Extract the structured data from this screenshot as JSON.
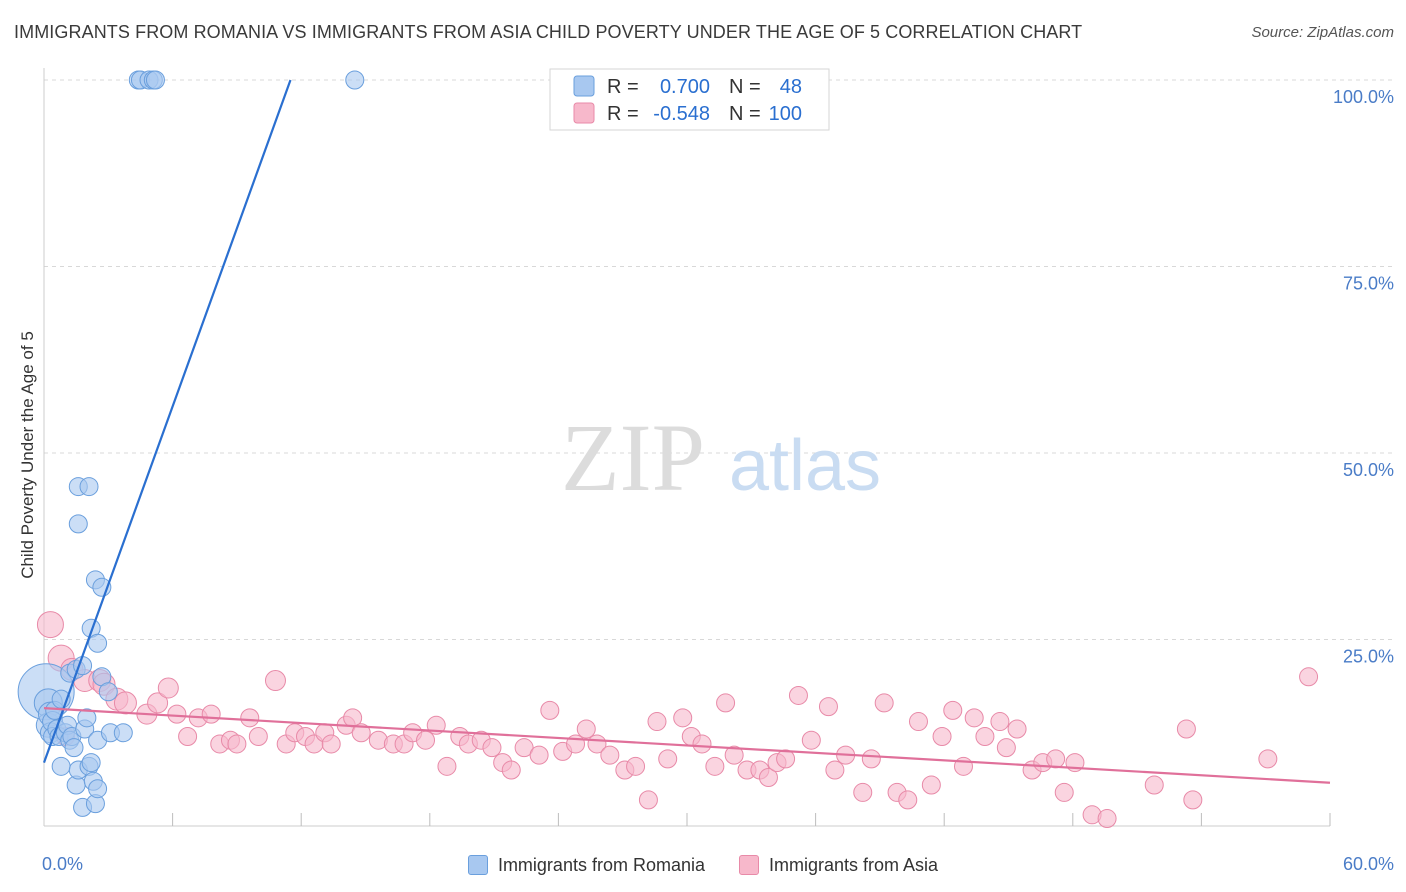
{
  "title": "IMMIGRANTS FROM ROMANIA VS IMMIGRANTS FROM ASIA CHILD POVERTY UNDER THE AGE OF 5 CORRELATION CHART",
  "source": "Source: ZipAtlas.com",
  "watermark": {
    "zip": "ZIP",
    "atlas": "atlas"
  },
  "legend_top": {
    "r_label": "R =",
    "n_label": "N =",
    "entries": [
      {
        "r": "0.700",
        "n": "48"
      },
      {
        "r": "-0.548",
        "n": "100"
      }
    ]
  },
  "colors": {
    "romania_fill": "#a8c8f0",
    "romania_stroke": "#6a9fdd",
    "romania_line": "#2a6fd0",
    "asia_fill": "#f7b8cb",
    "asia_stroke": "#e88aa8",
    "asia_line": "#e0709a",
    "tick_text": "#4a7cc7",
    "grid": "#d8d8d8"
  },
  "chart_data": {
    "type": "scatter",
    "title": "IMMIGRANTS FROM ROMANIA VS IMMIGRANTS FROM ASIA CHILD POVERTY UNDER THE AGE OF 5 CORRELATION CHART",
    "xlabel": "",
    "ylabel": "Child Poverty Under the Age of 5",
    "xlim": [
      0,
      60
    ],
    "ylim": [
      0,
      103
    ],
    "x_tick_labels": [
      {
        "value": 0,
        "label": "0.0%"
      },
      {
        "value": 60,
        "label": "60.0%"
      }
    ],
    "x_minor_ticks": [
      6,
      12,
      18,
      24,
      30,
      36,
      42,
      48,
      54,
      60
    ],
    "y_ticks": [
      {
        "value": 25,
        "label": "25.0%"
      },
      {
        "value": 50,
        "label": "50.0%"
      },
      {
        "value": 75,
        "label": "75.0%"
      },
      {
        "value": 100,
        "label": "100.0%"
      }
    ],
    "grid": true,
    "legend_position": "top-center",
    "series": [
      {
        "name": "Immigrants from Romania",
        "r": 0.7,
        "n": 48,
        "trend": {
          "x0": 0.0,
          "y0": 8.5,
          "x1": 11.5,
          "y1": 100
        },
        "points": [
          {
            "x": 0.1,
            "y": 18.0,
            "s": 28
          },
          {
            "x": 0.2,
            "y": 16.5,
            "s": 14
          },
          {
            "x": 0.2,
            "y": 13.5,
            "s": 12
          },
          {
            "x": 0.3,
            "y": 15.0,
            "s": 12
          },
          {
            "x": 0.3,
            "y": 12.5,
            "s": 10
          },
          {
            "x": 0.4,
            "y": 14.0,
            "s": 10
          },
          {
            "x": 0.4,
            "y": 12.0,
            "s": 9
          },
          {
            "x": 0.5,
            "y": 15.5,
            "s": 9
          },
          {
            "x": 0.6,
            "y": 13.0,
            "s": 9
          },
          {
            "x": 0.7,
            "y": 12.0,
            "s": 9
          },
          {
            "x": 0.8,
            "y": 17.0,
            "s": 9
          },
          {
            "x": 0.8,
            "y": 8.0,
            "s": 9
          },
          {
            "x": 1.0,
            "y": 12.5,
            "s": 9
          },
          {
            "x": 1.1,
            "y": 13.5,
            "s": 9
          },
          {
            "x": 1.2,
            "y": 20.5,
            "s": 9
          },
          {
            "x": 1.2,
            "y": 11.5,
            "s": 9
          },
          {
            "x": 1.3,
            "y": 12.0,
            "s": 9
          },
          {
            "x": 1.4,
            "y": 10.5,
            "s": 9
          },
          {
            "x": 1.5,
            "y": 21.0,
            "s": 9
          },
          {
            "x": 1.5,
            "y": 5.5,
            "s": 9
          },
          {
            "x": 1.6,
            "y": 7.5,
            "s": 9
          },
          {
            "x": 1.6,
            "y": 45.5,
            "s": 9
          },
          {
            "x": 1.6,
            "y": 40.5,
            "s": 9
          },
          {
            "x": 1.8,
            "y": 21.5,
            "s": 9
          },
          {
            "x": 1.8,
            "y": 2.5,
            "s": 9
          },
          {
            "x": 1.9,
            "y": 13.0,
            "s": 9
          },
          {
            "x": 2.0,
            "y": 14.5,
            "s": 9
          },
          {
            "x": 2.1,
            "y": 45.5,
            "s": 9
          },
          {
            "x": 2.1,
            "y": 8.0,
            "s": 9
          },
          {
            "x": 2.2,
            "y": 26.5,
            "s": 9
          },
          {
            "x": 2.2,
            "y": 8.5,
            "s": 9
          },
          {
            "x": 2.3,
            "y": 6.0,
            "s": 9
          },
          {
            "x": 2.4,
            "y": 3.0,
            "s": 9
          },
          {
            "x": 2.4,
            "y": 33.0,
            "s": 9
          },
          {
            "x": 2.5,
            "y": 24.5,
            "s": 9
          },
          {
            "x": 2.5,
            "y": 11.5,
            "s": 9
          },
          {
            "x": 2.5,
            "y": 5.0,
            "s": 9
          },
          {
            "x": 2.7,
            "y": 32.0,
            "s": 9
          },
          {
            "x": 2.7,
            "y": 20.0,
            "s": 9
          },
          {
            "x": 3.0,
            "y": 18.0,
            "s": 9
          },
          {
            "x": 3.1,
            "y": 12.5,
            "s": 9
          },
          {
            "x": 3.7,
            "y": 12.5,
            "s": 9
          },
          {
            "x": 4.4,
            "y": 100,
            "s": 9
          },
          {
            "x": 4.5,
            "y": 100,
            "s": 9
          },
          {
            "x": 4.9,
            "y": 100,
            "s": 9
          },
          {
            "x": 5.1,
            "y": 100,
            "s": 9
          },
          {
            "x": 5.2,
            "y": 100,
            "s": 9
          },
          {
            "x": 14.5,
            "y": 100,
            "s": 9
          }
        ]
      },
      {
        "name": "Immigrants from Asia",
        "r": -0.548,
        "n": 100,
        "trend": {
          "x0": 0.0,
          "y0": 15.8,
          "x1": 60,
          "y1": 5.8
        },
        "points": [
          {
            "x": 0.3,
            "y": 27.0,
            "s": 13
          },
          {
            "x": 0.8,
            "y": 22.5,
            "s": 13
          },
          {
            "x": 1.3,
            "y": 21.0,
            "s": 11
          },
          {
            "x": 1.9,
            "y": 19.5,
            "s": 11
          },
          {
            "x": 2.6,
            "y": 19.5,
            "s": 11
          },
          {
            "x": 2.8,
            "y": 19.0,
            "s": 11
          },
          {
            "x": 3.4,
            "y": 17.0,
            "s": 11
          },
          {
            "x": 3.8,
            "y": 16.5,
            "s": 11
          },
          {
            "x": 4.8,
            "y": 15.0,
            "s": 10
          },
          {
            "x": 5.3,
            "y": 16.5,
            "s": 10
          },
          {
            "x": 5.8,
            "y": 18.5,
            "s": 10
          },
          {
            "x": 6.2,
            "y": 15.0,
            "s": 9
          },
          {
            "x": 6.7,
            "y": 12.0,
            "s": 9
          },
          {
            "x": 7.2,
            "y": 14.5,
            "s": 9
          },
          {
            "x": 7.8,
            "y": 15.0,
            "s": 9
          },
          {
            "x": 8.2,
            "y": 11.0,
            "s": 9
          },
          {
            "x": 8.7,
            "y": 11.5,
            "s": 9
          },
          {
            "x": 9.0,
            "y": 11.0,
            "s": 9
          },
          {
            "x": 9.6,
            "y": 14.5,
            "s": 9
          },
          {
            "x": 10.0,
            "y": 12.0,
            "s": 9
          },
          {
            "x": 10.8,
            "y": 19.5,
            "s": 10
          },
          {
            "x": 11.3,
            "y": 11.0,
            "s": 9
          },
          {
            "x": 11.7,
            "y": 12.5,
            "s": 9
          },
          {
            "x": 12.2,
            "y": 12.0,
            "s": 9
          },
          {
            "x": 12.6,
            "y": 11.0,
            "s": 9
          },
          {
            "x": 13.1,
            "y": 12.5,
            "s": 9
          },
          {
            "x": 13.4,
            "y": 11.0,
            "s": 9
          },
          {
            "x": 14.1,
            "y": 13.5,
            "s": 9
          },
          {
            "x": 14.4,
            "y": 14.5,
            "s": 9
          },
          {
            "x": 14.8,
            "y": 12.5,
            "s": 9
          },
          {
            "x": 15.6,
            "y": 11.5,
            "s": 9
          },
          {
            "x": 16.3,
            "y": 11.0,
            "s": 9
          },
          {
            "x": 16.8,
            "y": 11.0,
            "s": 9
          },
          {
            "x": 17.2,
            "y": 12.5,
            "s": 9
          },
          {
            "x": 17.8,
            "y": 11.5,
            "s": 9
          },
          {
            "x": 18.3,
            "y": 13.5,
            "s": 9
          },
          {
            "x": 18.8,
            "y": 8.0,
            "s": 9
          },
          {
            "x": 19.4,
            "y": 12.0,
            "s": 9
          },
          {
            "x": 19.8,
            "y": 11.0,
            "s": 9
          },
          {
            "x": 20.4,
            "y": 11.5,
            "s": 9
          },
          {
            "x": 20.9,
            "y": 10.5,
            "s": 9
          },
          {
            "x": 21.4,
            "y": 8.5,
            "s": 9
          },
          {
            "x": 21.8,
            "y": 7.5,
            "s": 9
          },
          {
            "x": 22.4,
            "y": 10.5,
            "s": 9
          },
          {
            "x": 23.1,
            "y": 9.5,
            "s": 9
          },
          {
            "x": 23.6,
            "y": 15.5,
            "s": 9
          },
          {
            "x": 24.2,
            "y": 10.0,
            "s": 9
          },
          {
            "x": 24.8,
            "y": 11.0,
            "s": 9
          },
          {
            "x": 25.3,
            "y": 13.0,
            "s": 9
          },
          {
            "x": 25.8,
            "y": 11.0,
            "s": 9
          },
          {
            "x": 26.4,
            "y": 9.5,
            "s": 9
          },
          {
            "x": 27.1,
            "y": 7.5,
            "s": 9
          },
          {
            "x": 27.6,
            "y": 8.0,
            "s": 9
          },
          {
            "x": 28.2,
            "y": 3.5,
            "s": 9
          },
          {
            "x": 28.6,
            "y": 14.0,
            "s": 9
          },
          {
            "x": 29.1,
            "y": 9.0,
            "s": 9
          },
          {
            "x": 29.8,
            "y": 14.5,
            "s": 9
          },
          {
            "x": 30.2,
            "y": 12.0,
            "s": 9
          },
          {
            "x": 30.7,
            "y": 11.0,
            "s": 9
          },
          {
            "x": 31.3,
            "y": 8.0,
            "s": 9
          },
          {
            "x": 31.8,
            "y": 16.5,
            "s": 9
          },
          {
            "x": 32.2,
            "y": 9.5,
            "s": 9
          },
          {
            "x": 32.8,
            "y": 7.5,
            "s": 9
          },
          {
            "x": 33.4,
            "y": 7.5,
            "s": 9
          },
          {
            "x": 33.8,
            "y": 6.5,
            "s": 9
          },
          {
            "x": 34.2,
            "y": 8.5,
            "s": 9
          },
          {
            "x": 34.6,
            "y": 9.0,
            "s": 9
          },
          {
            "x": 35.2,
            "y": 17.5,
            "s": 9
          },
          {
            "x": 35.8,
            "y": 11.5,
            "s": 9
          },
          {
            "x": 36.6,
            "y": 16.0,
            "s": 9
          },
          {
            "x": 36.9,
            "y": 7.5,
            "s": 9
          },
          {
            "x": 37.4,
            "y": 9.5,
            "s": 9
          },
          {
            "x": 38.2,
            "y": 4.5,
            "s": 9
          },
          {
            "x": 38.6,
            "y": 9.0,
            "s": 9
          },
          {
            "x": 39.2,
            "y": 16.5,
            "s": 9
          },
          {
            "x": 39.8,
            "y": 4.5,
            "s": 9
          },
          {
            "x": 40.3,
            "y": 3.5,
            "s": 9
          },
          {
            "x": 40.8,
            "y": 14.0,
            "s": 9
          },
          {
            "x": 41.4,
            "y": 5.5,
            "s": 9
          },
          {
            "x": 41.9,
            "y": 12.0,
            "s": 9
          },
          {
            "x": 42.4,
            "y": 15.5,
            "s": 9
          },
          {
            "x": 42.9,
            "y": 8.0,
            "s": 9
          },
          {
            "x": 43.4,
            "y": 14.5,
            "s": 9
          },
          {
            "x": 43.9,
            "y": 12.0,
            "s": 9
          },
          {
            "x": 44.6,
            "y": 14.0,
            "s": 9
          },
          {
            "x": 44.9,
            "y": 10.5,
            "s": 9
          },
          {
            "x": 45.4,
            "y": 13.0,
            "s": 9
          },
          {
            "x": 46.1,
            "y": 7.5,
            "s": 9
          },
          {
            "x": 46.6,
            "y": 8.5,
            "s": 9
          },
          {
            "x": 47.2,
            "y": 9.0,
            "s": 9
          },
          {
            "x": 47.6,
            "y": 4.5,
            "s": 9
          },
          {
            "x": 48.1,
            "y": 8.5,
            "s": 9
          },
          {
            "x": 48.9,
            "y": 1.5,
            "s": 9
          },
          {
            "x": 49.6,
            "y": 1.0,
            "s": 9
          },
          {
            "x": 51.8,
            "y": 5.5,
            "s": 9
          },
          {
            "x": 53.3,
            "y": 13.0,
            "s": 9
          },
          {
            "x": 53.6,
            "y": 3.5,
            "s": 9
          },
          {
            "x": 57.1,
            "y": 9.0,
            "s": 9
          },
          {
            "x": 59.0,
            "y": 20.0,
            "s": 9
          },
          {
            "x": 1.0,
            "y": 12.0,
            "s": 9
          }
        ]
      }
    ]
  }
}
